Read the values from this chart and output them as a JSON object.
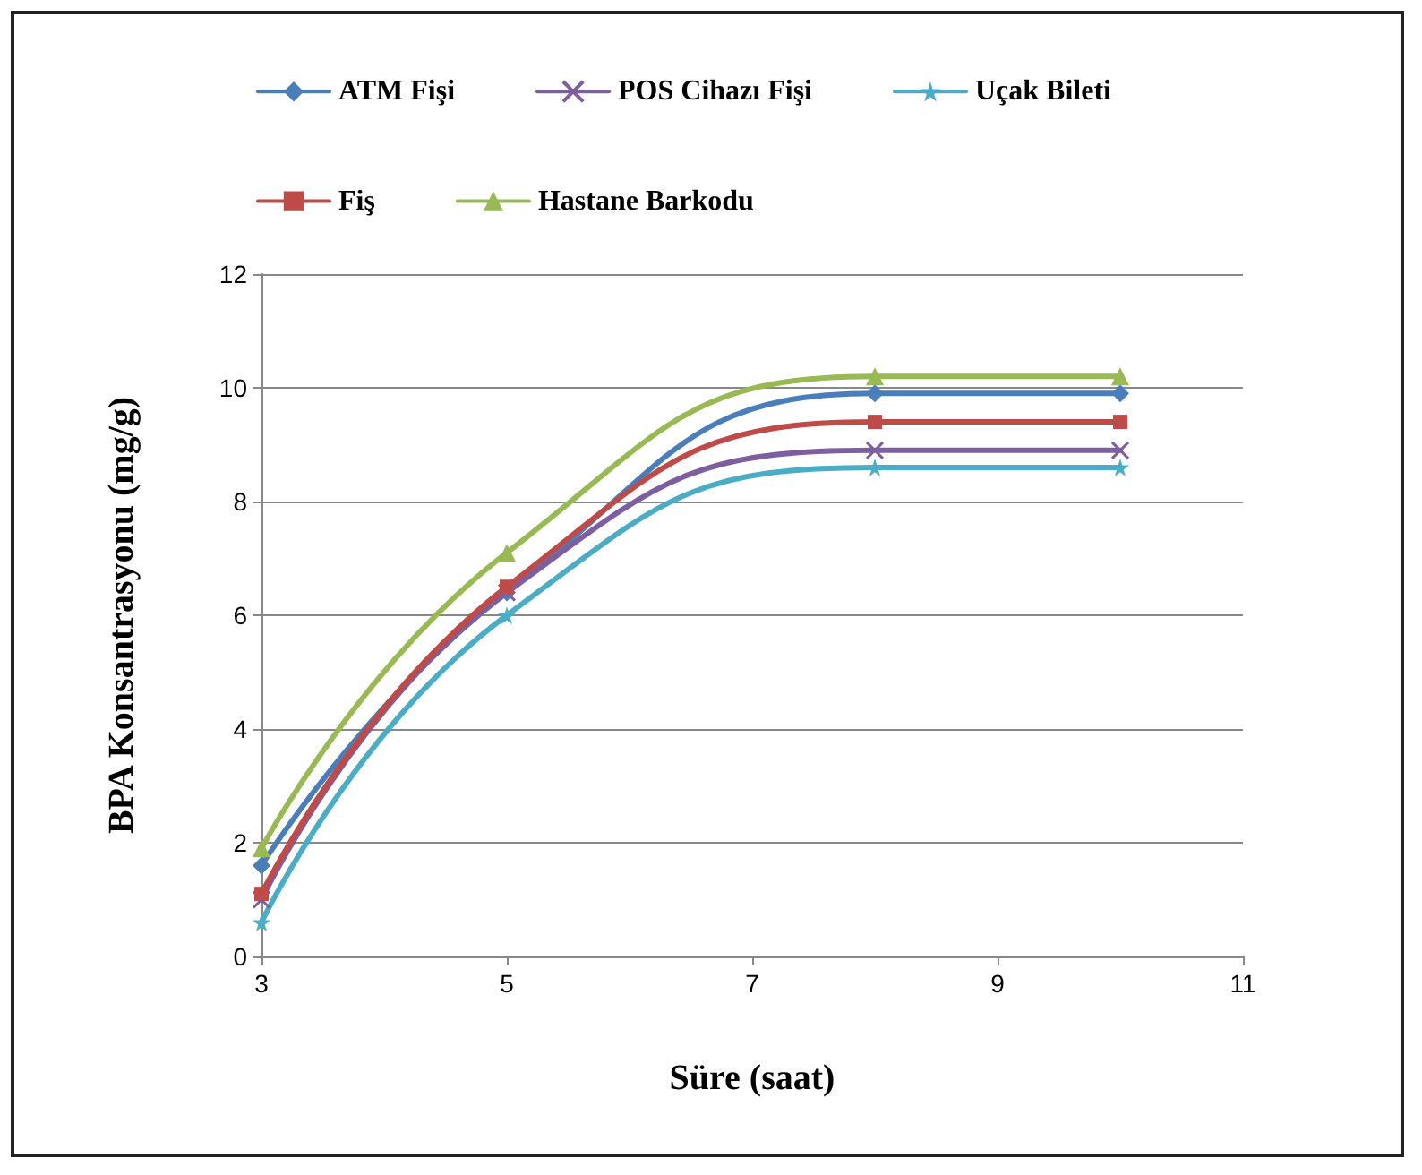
{
  "chart_data": {
    "type": "line",
    "xlabel": "Süre (saat)",
    "ylabel": "BPA Konsantrasyonu (mg/g)",
    "x": [
      3,
      5,
      8,
      10
    ],
    "series": [
      {
        "name": "ATM Fişi",
        "color": "#4a7ebb",
        "marker": "diamond",
        "values": [
          1.6,
          6.4,
          9.9,
          9.9
        ]
      },
      {
        "name": "POS Cihazı Fişi",
        "color": "#7d5fa0",
        "marker": "cross",
        "values": [
          1.0,
          6.4,
          8.9,
          8.9
        ]
      },
      {
        "name": "Uçak Bileti",
        "color": "#4bacc6",
        "marker": "star",
        "values": [
          0.6,
          6.0,
          8.6,
          8.6
        ]
      },
      {
        "name": "Fiş",
        "color": "#be4b48",
        "marker": "square",
        "values": [
          1.1,
          6.5,
          9.4,
          9.4
        ]
      },
      {
        "name": "Hastane Barkodu",
        "color": "#98b954",
        "marker": "triangle",
        "values": [
          1.9,
          7.1,
          10.2,
          10.2
        ]
      }
    ],
    "xlim": [
      3,
      11
    ],
    "xticks": [
      3,
      5,
      7,
      9,
      11
    ],
    "ylim": [
      0,
      12
    ],
    "yticks": [
      0,
      2,
      4,
      6,
      8,
      10,
      12
    ],
    "grid": "y",
    "legend": "top",
    "line_style": "solid"
  }
}
